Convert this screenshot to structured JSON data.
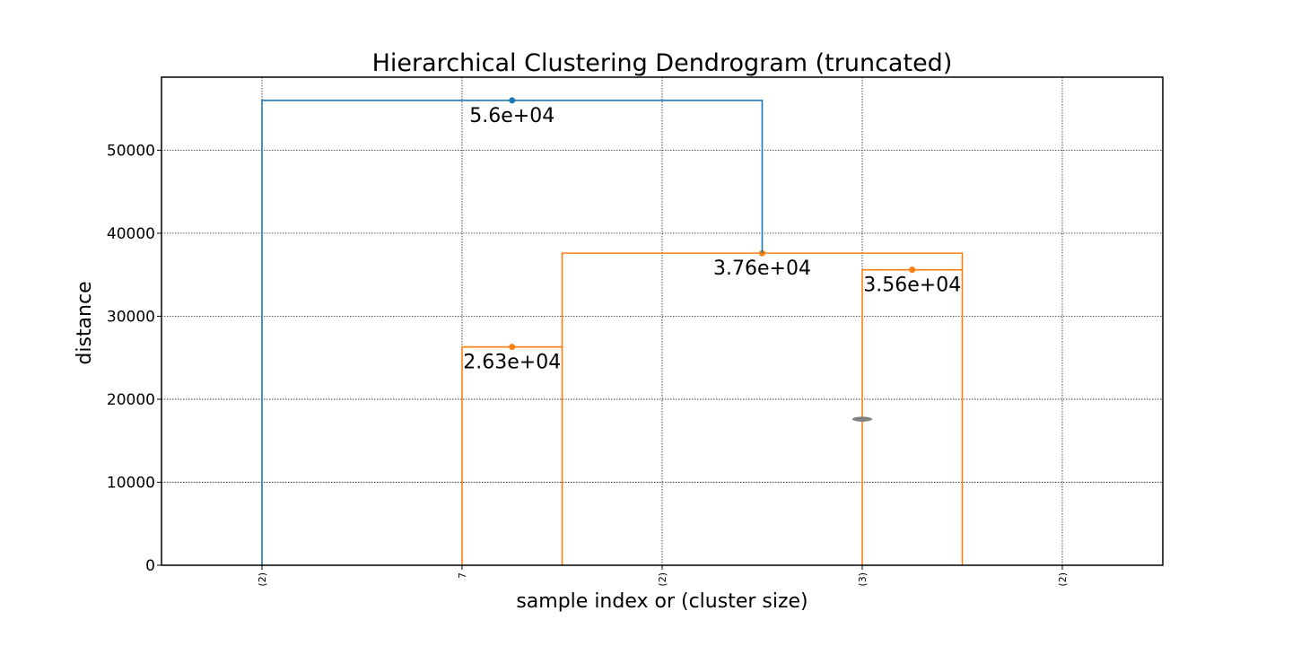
{
  "chart_data": {
    "type": "dendrogram",
    "title": "Hierarchical Clustering Dendrogram (truncated)",
    "xlabel": "sample index or (cluster size)",
    "ylabel": "distance",
    "ylim": [
      0,
      58800
    ],
    "y_ticks": [
      0,
      10000,
      20000,
      30000,
      40000,
      50000
    ],
    "grid": true,
    "leaves": [
      "(2)",
      "7",
      "(2)",
      "(3)",
      "(2)"
    ],
    "above_threshold_color": "#1f77b4",
    "cluster_color": "#ff7f0e",
    "links": [
      {
        "left_x": 1,
        "right_x": 1.5,
        "height": 26300,
        "left_bottom": 0,
        "right_bottom": 0,
        "color": "#ff7f0e",
        "label": "2.63e+04"
      },
      {
        "left_x": 3,
        "right_x": 3.5,
        "height": 35600,
        "left_bottom": 0,
        "right_bottom": 0,
        "color": "#ff7f0e",
        "label": "3.56e+04"
      },
      {
        "left_x": 1.5,
        "right_x": 3.5,
        "height": 37600,
        "left_bottom": 26300,
        "right_bottom": 35600,
        "color": "#ff7f0e",
        "label": "3.76e+04"
      },
      {
        "left_x": 0,
        "right_x": 2.5,
        "height": 56000,
        "left_bottom": 0,
        "right_bottom": 37600,
        "color": "#1f77b4",
        "label": "5.6e+04"
      }
    ],
    "truncation_marks": [
      {
        "x": 3,
        "y": 17600,
        "color": "#808080"
      }
    ]
  }
}
